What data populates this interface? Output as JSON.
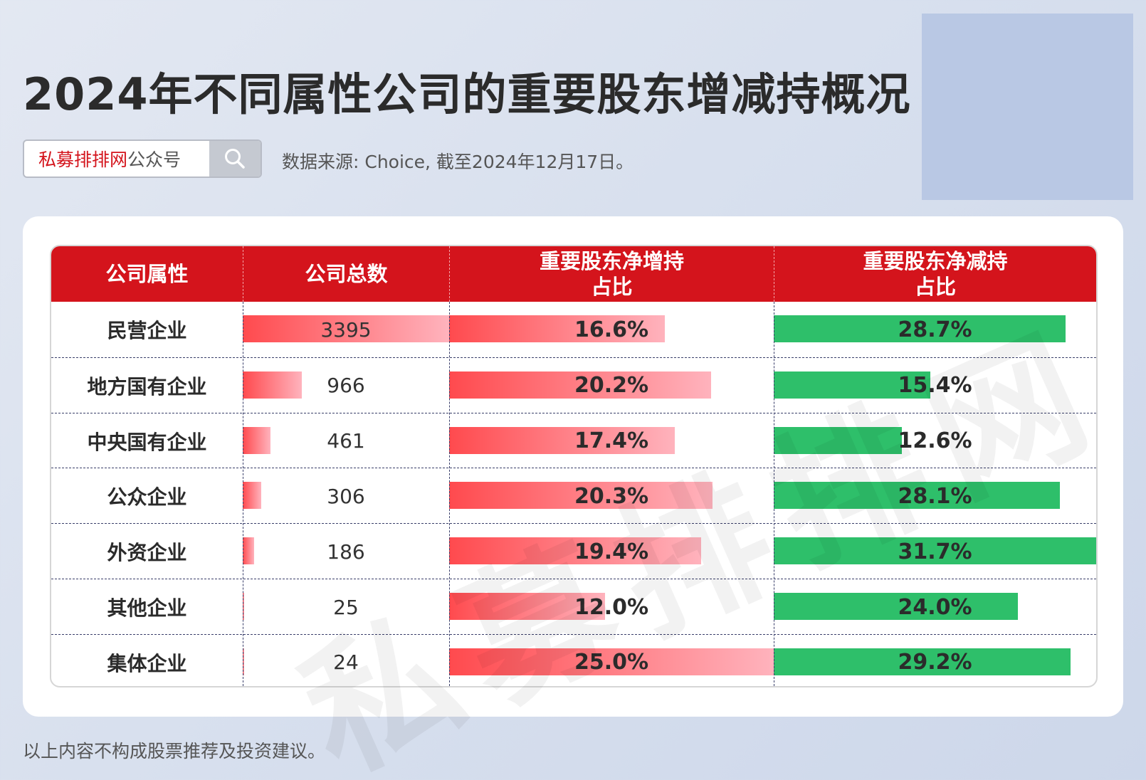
{
  "title": "2024年不同属性公司的重要股东增减持概况",
  "search": {
    "brand": "私募排排网",
    "brand_suffix": "公众号",
    "icon": "search-icon"
  },
  "source": "数据来源: Choice, 截至2024年12月17日。",
  "watermark": "私募排排网",
  "disclaimer": "以上内容不构成股票推荐及投资建议。",
  "colors": {
    "header": "#d4141c",
    "increase_bar": "#ff4a4e",
    "decrease_bar": "#2ebf6a"
  },
  "chart_data": {
    "type": "table",
    "headers": [
      "公司属性",
      "公司总数",
      "重要股东净增持\n占比",
      "重要股东净减持\n占比"
    ],
    "rows": [
      {
        "category": "民营企业",
        "count": 3395,
        "increase_pct": 16.6,
        "decrease_pct": 28.7,
        "count_text": "3395",
        "increase_text": "16.6%",
        "decrease_text": "28.7%"
      },
      {
        "category": "地方国有企业",
        "count": 966,
        "increase_pct": 20.2,
        "decrease_pct": 15.4,
        "count_text": "966",
        "increase_text": "20.2%",
        "decrease_text": "15.4%"
      },
      {
        "category": "中央国有企业",
        "count": 461,
        "increase_pct": 17.4,
        "decrease_pct": 12.6,
        "count_text": "461",
        "increase_text": "17.4%",
        "decrease_text": "12.6%"
      },
      {
        "category": "公众企业",
        "count": 306,
        "increase_pct": 20.3,
        "decrease_pct": 28.1,
        "count_text": "306",
        "increase_text": "20.3%",
        "decrease_text": "28.1%"
      },
      {
        "category": "外资企业",
        "count": 186,
        "increase_pct": 19.4,
        "decrease_pct": 31.7,
        "count_text": "186",
        "increase_text": "19.4%",
        "decrease_text": "31.7%"
      },
      {
        "category": "其他企业",
        "count": 25,
        "increase_pct": 12.0,
        "decrease_pct": 24.0,
        "count_text": "25",
        "increase_text": "12.0%",
        "decrease_text": "24.0%"
      },
      {
        "category": "集体企业",
        "count": 24,
        "increase_pct": 25.0,
        "decrease_pct": 29.2,
        "count_text": "24",
        "increase_text": "25.0%",
        "decrease_text": "29.2%"
      }
    ]
  }
}
